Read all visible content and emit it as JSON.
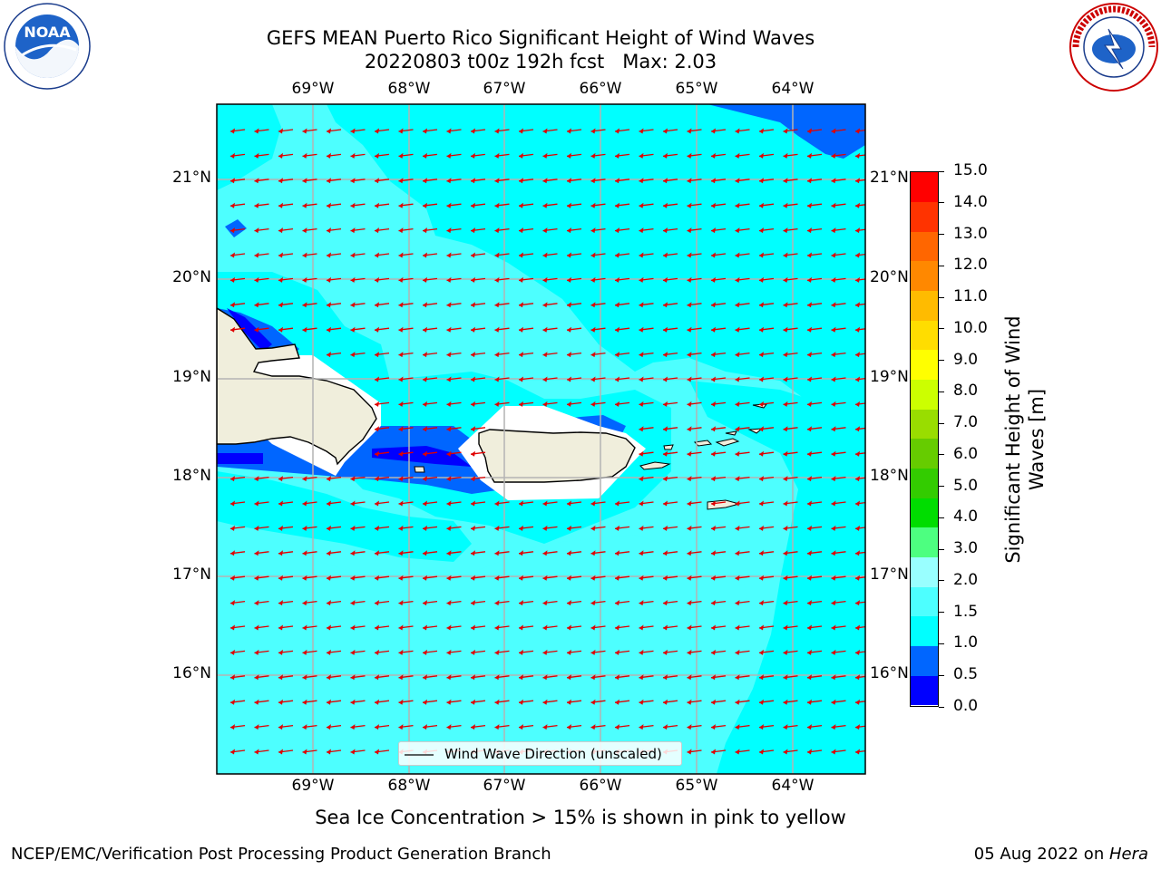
{
  "header": {
    "title_line1": "GEFS MEAN Puerto Rico Significant Height of Wind Waves",
    "title_line2": "20220803 t00z 192h fcst   Max: 2.03"
  },
  "logos": {
    "left": {
      "icon": "noaa-logo",
      "text": "NOAA",
      "ring_text": "NATIONAL OCEANIC AND ATMOSPHERIC ADMINISTRATION · U.S. DEPARTMENT OF COMMERCE"
    },
    "right": {
      "icon": "nws-logo",
      "ring_text": "NATIONAL WEATHER SERVICE"
    }
  },
  "map": {
    "lon_ticks": [
      "69°W",
      "68°W",
      "67°W",
      "66°W",
      "65°W",
      "64°W"
    ],
    "lat_ticks": [
      "21°N",
      "20°N",
      "19°N",
      "18°N",
      "17°N",
      "16°N"
    ],
    "legend_label": "Wind Wave Direction (unscaled)",
    "colors": {
      "band_0_0_5": "#0000ff",
      "band_0_5_1_0": "#0066ff",
      "band_1_0_1_5": "#00ffff",
      "band_1_5_2_0": "#4dffff",
      "land": "#f0eedc",
      "arrow": "#e00000",
      "grid": "#b4b4b4"
    }
  },
  "colorbar": {
    "label": "Significant Height of Wind Waves [m]",
    "ticks": [
      "0.0",
      "0.5",
      "1.0",
      "1.5",
      "2.0",
      "3.0",
      "4.0",
      "5.0",
      "6.0",
      "7.0",
      "8.0",
      "9.0",
      "10.0",
      "11.0",
      "12.0",
      "13.0",
      "14.0",
      "15.0"
    ],
    "colors": [
      "#0000ff",
      "#0066ff",
      "#00ffff",
      "#4dffff",
      "#99ffff",
      "#4dff80",
      "#00dd00",
      "#33cc00",
      "#66cc00",
      "#99dd00",
      "#ccff00",
      "#ffff00",
      "#ffdd00",
      "#ffbb00",
      "#ff8800",
      "#ff6600",
      "#ff3300",
      "#ff0000"
    ]
  },
  "notes": {
    "sea_ice": "Sea Ice Concentration > 15% is shown in pink to yellow"
  },
  "footer": {
    "left": "NCEP/EMC/Verification Post Processing Product Generation Branch",
    "right_date": "05 Aug 2022 on ",
    "right_host": "Hera"
  }
}
